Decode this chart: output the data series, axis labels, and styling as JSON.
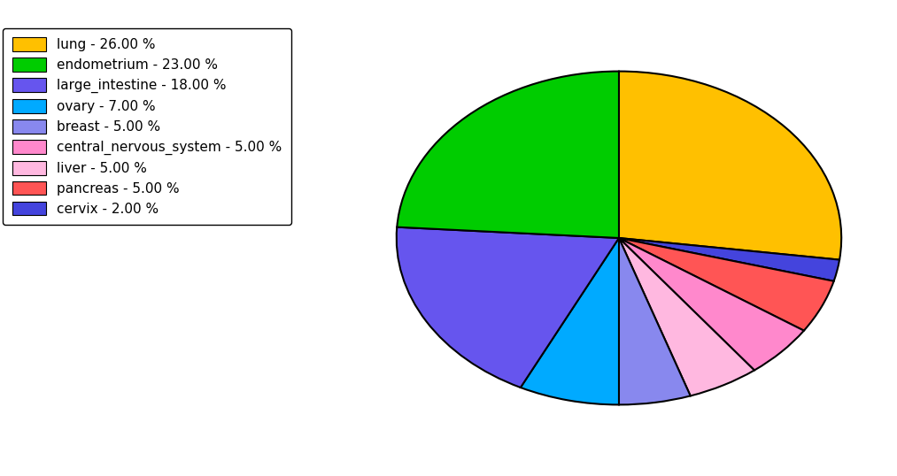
{
  "labels": [
    "lung",
    "cervix",
    "pancreas",
    "central_nervous_system",
    "liver",
    "breast",
    "ovary",
    "large_intestine",
    "endometrium"
  ],
  "values": [
    26.0,
    2.0,
    5.0,
    5.0,
    5.0,
    5.0,
    7.0,
    18.0,
    23.0
  ],
  "colors": [
    "#FFC000",
    "#4444DD",
    "#FF5555",
    "#FF88CC",
    "#FFB8E0",
    "#8888EE",
    "#00AAFF",
    "#6655EE",
    "#00CC00"
  ],
  "legend_labels": [
    "lung - 26.00 %",
    "endometrium - 23.00 %",
    "large_intestine - 18.00 %",
    "ovary - 7.00 %",
    "breast - 5.00 %",
    "central_nervous_system - 5.00 %",
    "liver - 5.00 %",
    "pancreas - 5.00 %",
    "cervix - 2.00 %"
  ],
  "legend_colors": [
    "#FFC000",
    "#00CC00",
    "#6655EE",
    "#00AAFF",
    "#8888EE",
    "#FF88CC",
    "#FFB8E0",
    "#FF5555",
    "#4444DD"
  ],
  "startangle": 90,
  "background_color": "#FFFFFF",
  "figsize": [
    10.13,
    5.38
  ],
  "dpi": 100
}
